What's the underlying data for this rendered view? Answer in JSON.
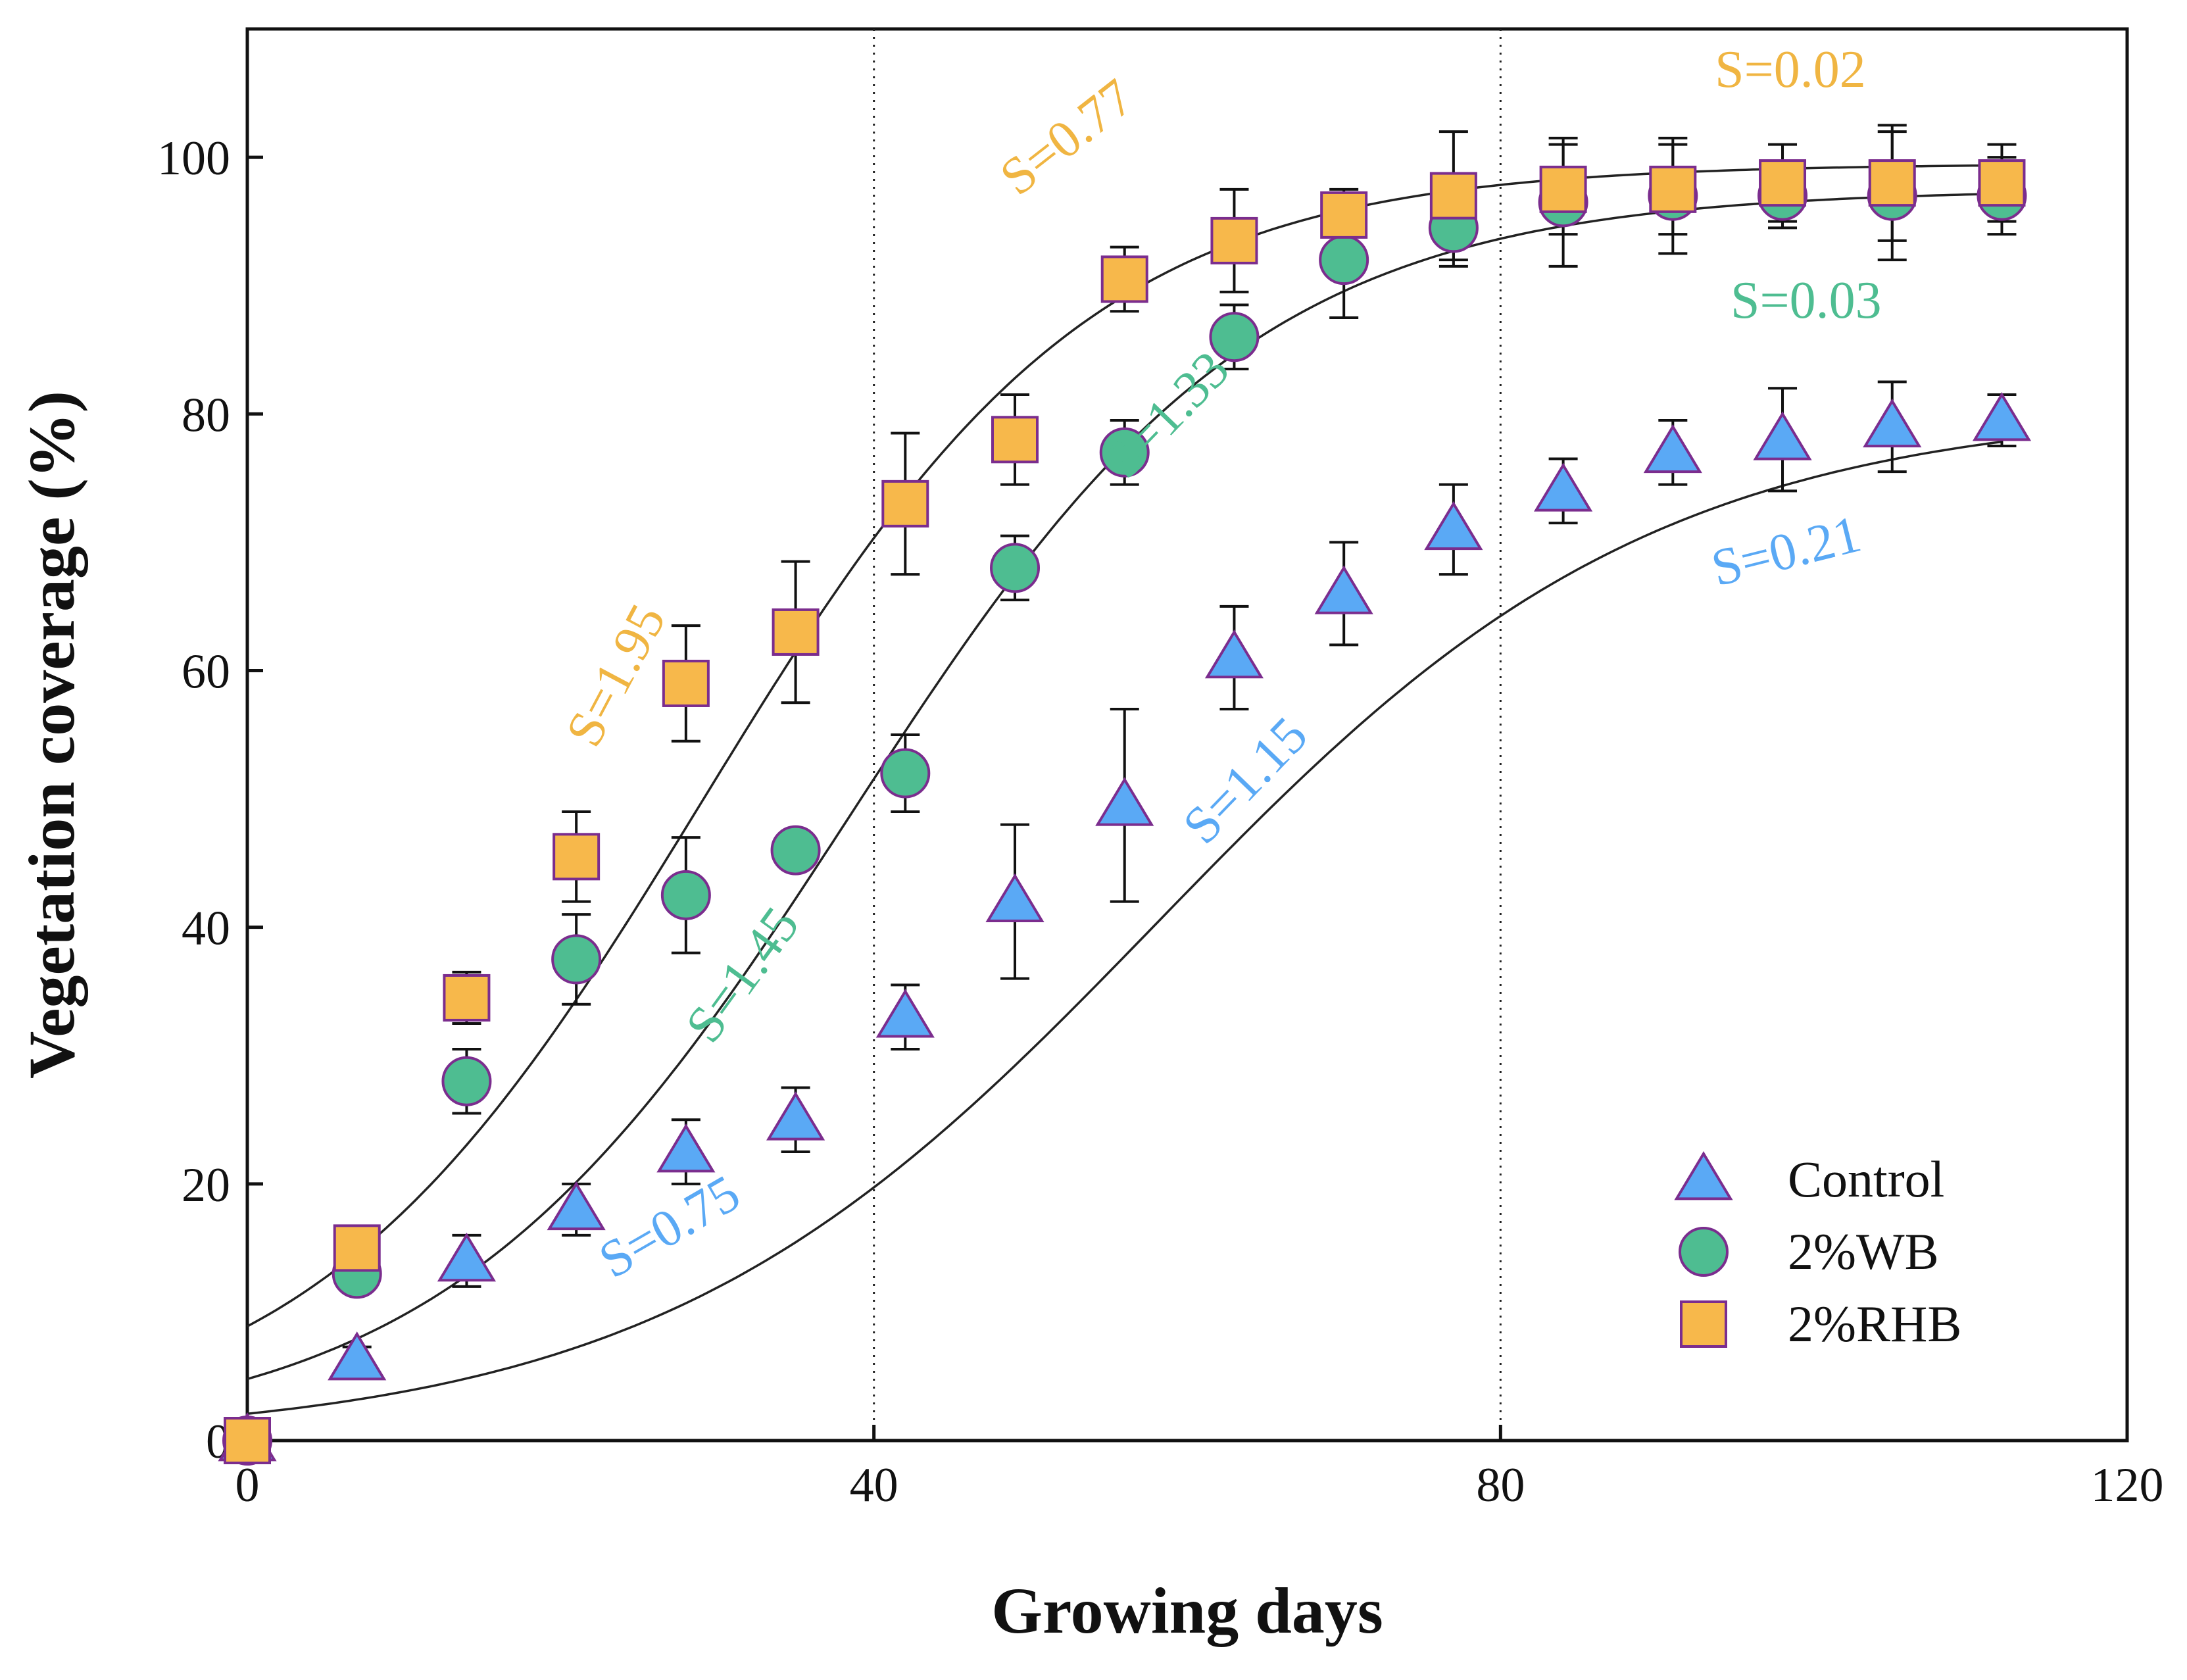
{
  "chart_data": {
    "type": "scatter",
    "xlabel": "Growing days",
    "ylabel": "Vegetation coverage (%)",
    "xlim": [
      0,
      120
    ],
    "ylim": [
      0,
      110
    ],
    "xticks": [
      0,
      40,
      80,
      120
    ],
    "yticks": [
      0,
      20,
      40,
      60,
      80,
      100
    ],
    "vlines": [
      40,
      80
    ],
    "legend_position": "bottom-right",
    "series": [
      {
        "name": "Control",
        "marker": "triangle",
        "color": "#5aa9f5",
        "edge_color": "#7b2d8e",
        "x": [
          0,
          7,
          14,
          21,
          28,
          35,
          42,
          49,
          56,
          63,
          70,
          77,
          84,
          91,
          98,
          105,
          112
        ],
        "y": [
          0,
          6.3,
          14,
          18,
          22.5,
          25,
          33,
          42,
          49.5,
          61,
          66,
          71,
          74,
          77,
          78,
          79,
          79.5
        ],
        "err": [
          0.5,
          1.0,
          2.0,
          2.0,
          2.5,
          2.5,
          2.5,
          6.0,
          7.5,
          4.0,
          4.0,
          3.5,
          2.5,
          2.5,
          4.0,
          3.5,
          2.0
        ],
        "fit": {
          "A": 80.5,
          "k": 58.0,
          "w": 16.0
        }
      },
      {
        "name": "2%WB",
        "marker": "circle",
        "color": "#4ebd91",
        "edge_color": "#7b2d8e",
        "x": [
          0,
          7,
          14,
          21,
          28,
          35,
          42,
          49,
          56,
          63,
          70,
          77,
          84,
          91,
          98,
          105,
          112
        ],
        "y": [
          0,
          13,
          28,
          37.5,
          42.5,
          46,
          52,
          68,
          77,
          86,
          92,
          94.5,
          96.5,
          97,
          97,
          97,
          97
        ],
        "err": [
          0.5,
          1.0,
          2.5,
          3.5,
          4.5,
          1.5,
          3.0,
          2.5,
          2.5,
          2.5,
          4.5,
          3.0,
          5.0,
          4.5,
          2.5,
          5.0,
          3.0
        ],
        "fit": {
          "A": 97.5,
          "k": 38.5,
          "w": 13.0
        }
      },
      {
        "name": "2%RHB",
        "marker": "square",
        "color": "#f7b84b",
        "edge_color": "#7b2d8e",
        "x": [
          0,
          7,
          14,
          21,
          28,
          35,
          42,
          49,
          56,
          63,
          70,
          77,
          84,
          91,
          98,
          105,
          112
        ],
        "y": [
          0,
          15,
          34.5,
          45.5,
          59,
          63,
          73,
          78,
          90.5,
          93.5,
          95.5,
          97,
          97.5,
          97.5,
          98,
          98,
          98
        ],
        "err": [
          0.5,
          1.0,
          2.0,
          3.5,
          4.5,
          5.5,
          5.5,
          3.5,
          2.5,
          4.0,
          2.0,
          5.0,
          3.5,
          3.5,
          3.0,
          4.5,
          3.0
        ],
        "fit": {
          "A": 99.5,
          "k": 29.0,
          "w": 12.5
        }
      }
    ],
    "annotations": [
      {
        "text": "S=1.95",
        "series": "2%RHB",
        "color": "#f0b542",
        "x": 24.5,
        "y": 59,
        "angle": -62
      },
      {
        "text": "S=0.77",
        "series": "2%RHB",
        "color": "#f0b542",
        "x": 53,
        "y": 100.5,
        "angle": -38
      },
      {
        "text": "S=0.02",
        "series": "2%RHB",
        "color": "#f0b542",
        "x": 98.5,
        "y": 105.5,
        "angle": 0
      },
      {
        "text": "S=1.45",
        "series": "2%WB",
        "color": "#4ebd91",
        "x": 32.5,
        "y": 35.5,
        "angle": -54
      },
      {
        "text": "S=1.33",
        "series": "2%WB",
        "color": "#4ebd91",
        "x": 59.5,
        "y": 79,
        "angle": -46
      },
      {
        "text": "S=0.03",
        "series": "2%WB",
        "color": "#4ebd91",
        "x": 99.5,
        "y": 87.5,
        "angle": 0
      },
      {
        "text": "S=0.75",
        "series": "Control",
        "color": "#5aa9f5",
        "x": 27.5,
        "y": 15.5,
        "angle": -30
      },
      {
        "text": "S=1.15",
        "series": "Control",
        "color": "#5aa9f5",
        "x": 64.5,
        "y": 50.5,
        "angle": -46
      },
      {
        "text": "S=0.21",
        "series": "Control",
        "color": "#5aa9f5",
        "x": 98.5,
        "y": 68,
        "angle": -14
      }
    ]
  }
}
